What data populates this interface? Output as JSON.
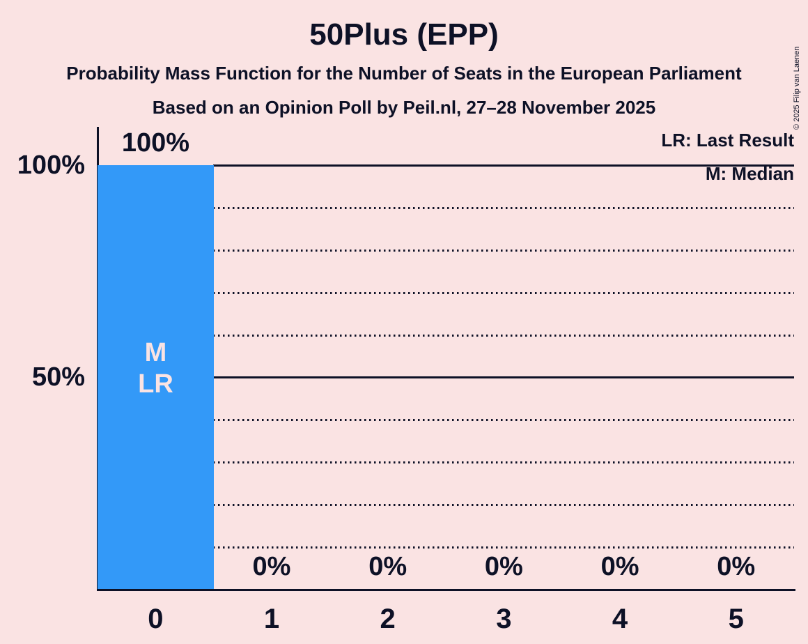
{
  "page": {
    "title": "50Plus (EPP)",
    "subtitle_line1": "Probability Mass Function for the Number of Seats in the European Parliament",
    "subtitle_line2": "Based on an Opinion Poll by Peil.nl, 27–28 November 2025",
    "copyright": "© 2025 Filip van Laenen"
  },
  "legend": {
    "last_result": "LR: Last Result",
    "median": "M: Median"
  },
  "colors": {
    "background": "#fae3e3",
    "bar": "#3399f8",
    "text": "#0d1126"
  },
  "y_axis": {
    "label_100": "100%",
    "label_50": "50%"
  },
  "chart_data": {
    "type": "bar",
    "title": "50Plus (EPP)",
    "categories": [
      "0",
      "1",
      "2",
      "3",
      "4",
      "5"
    ],
    "values": [
      100,
      0,
      0,
      0,
      0,
      0
    ],
    "bar_labels": [
      "100%",
      "0%",
      "0%",
      "0%",
      "0%",
      "0%"
    ],
    "ylim": [
      0,
      100
    ],
    "y_solid_gridlines": [
      100,
      50,
      0
    ],
    "y_dotted_gridlines": [
      90,
      80,
      70,
      60,
      40,
      30,
      20,
      10
    ],
    "grid": "horizontal-only",
    "legend_position": "top-right",
    "bar_annotations": {
      "seat": "0",
      "lines": [
        "M",
        "LR"
      ]
    }
  }
}
